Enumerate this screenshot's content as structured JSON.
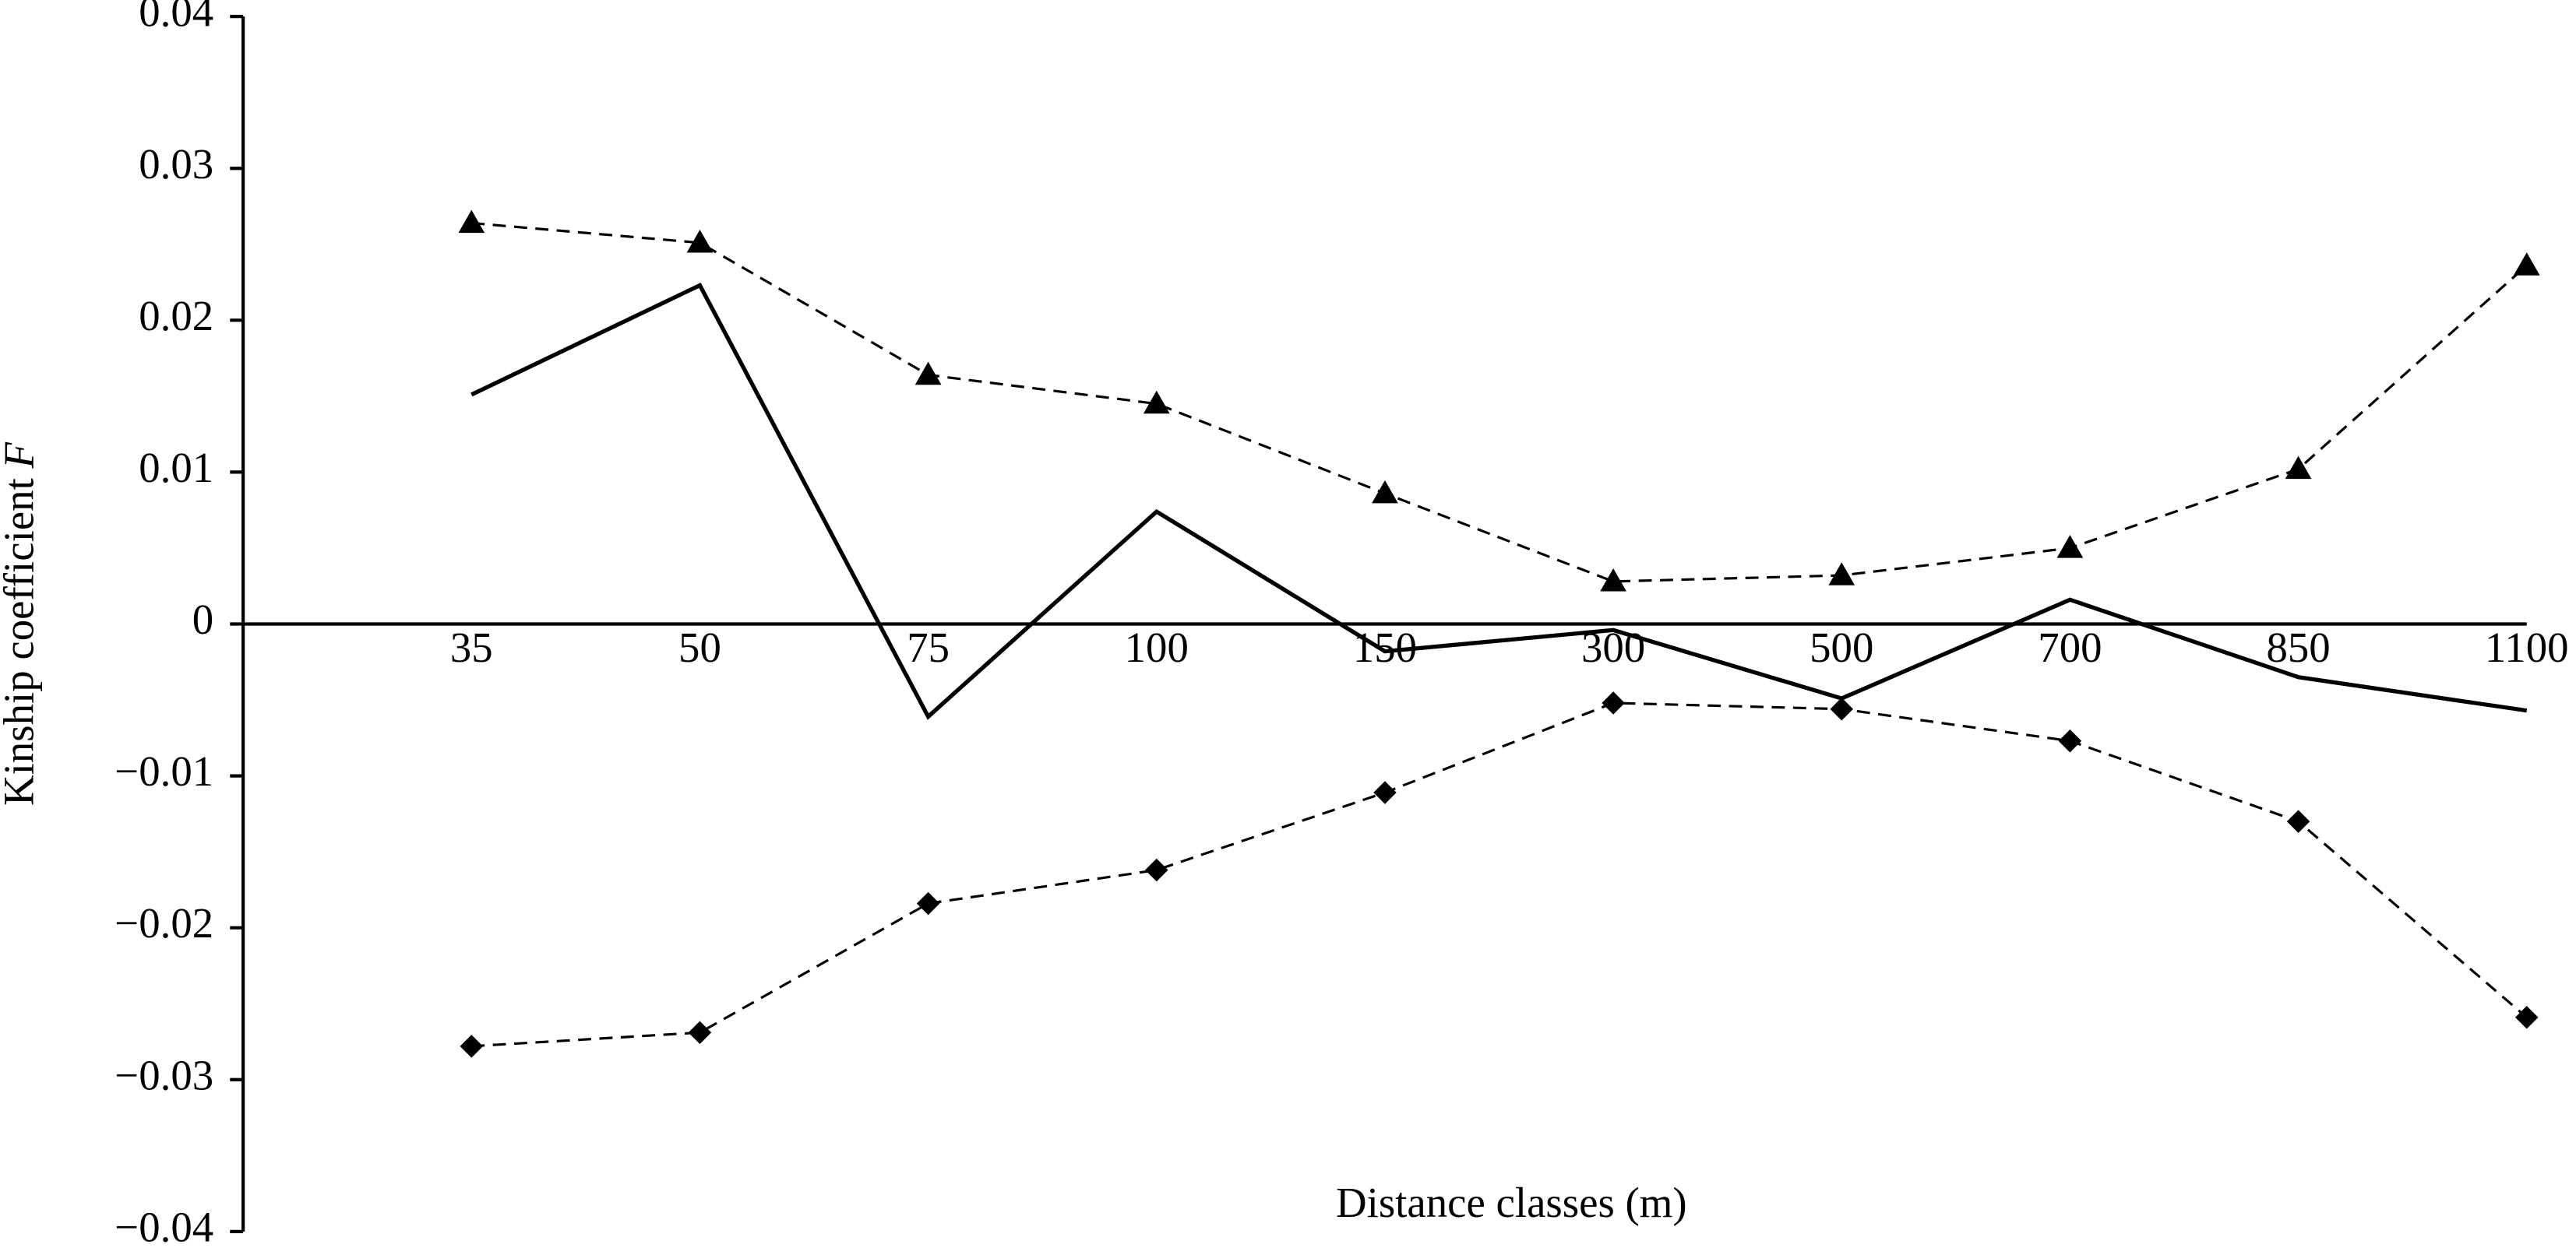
{
  "chart_data": {
    "type": "line",
    "x_label": "Distance classes (m)",
    "y_label": "Kinship coefficient",
    "y_label_symbol": "F",
    "categories": [
      "35",
      "50",
      "75",
      "100",
      "150",
      "300",
      "500",
      "700",
      "850",
      "1100"
    ],
    "series": [
      {
        "color": "#000000",
        "dashed": true,
        "marker": "triangle",
        "values": [
          0.0264,
          0.0251,
          0.0164,
          0.0145,
          0.0086,
          0.0028,
          0.0032,
          0.005,
          0.0102,
          0.0236
        ]
      },
      {
        "color": "#000000",
        "dashed": false,
        "marker": "none",
        "values": [
          0.0151,
          0.0223,
          -0.0061,
          0.0074,
          -0.0018,
          -0.0004,
          -0.0049,
          0.0016,
          -0.0035,
          -0.0057
        ]
      },
      {
        "color": "#000000",
        "dashed": true,
        "marker": "diamond",
        "values": [
          -0.0278,
          -0.0269,
          -0.0184,
          -0.0162,
          -0.0111,
          -0.0052,
          -0.0056,
          -0.0077,
          -0.013,
          -0.0259
        ]
      }
    ],
    "ylim": [
      -0.04,
      0.04
    ],
    "yticks": [
      0.04,
      0.03,
      0.02,
      0.01,
      0,
      {
        "value": -0.01,
        "label": "−0.01"
      },
      {
        "value": -0.02,
        "label": "−0.02"
      },
      {
        "value": -0.03,
        "label": "−0.03"
      },
      {
        "value": -0.04,
        "label": "−0.04"
      }
    ]
  }
}
